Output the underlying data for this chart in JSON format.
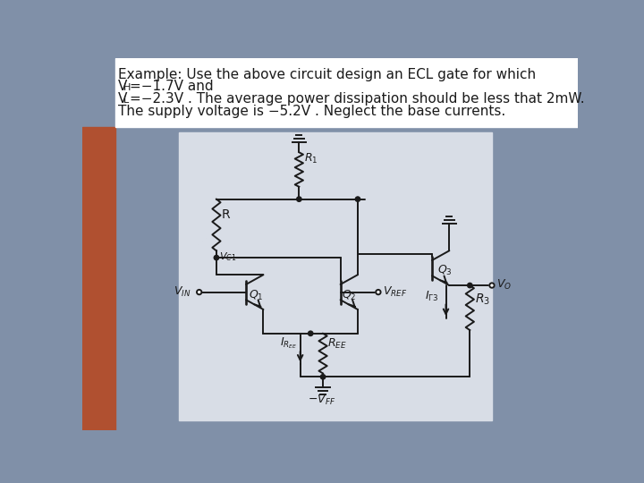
{
  "bg_color_left": "#b05030",
  "bg_color_right": "#8090a8",
  "text_bg": "#f0f0f0",
  "circuit_bg": "#d8dde6",
  "line_color": "#1a1a1a",
  "text_color": "#1a1a1a",
  "line1": "Example: Use the above circuit design an ECL gate for which",
  "line2_pre": "V",
  "line2_sub": "H",
  "line2_post": "=−1.7V and",
  "line3_pre": "V",
  "line3_sub": "L",
  "line3_post": "=−2.3V . The average power dissipation should be less that 2mW.",
  "line4": "The supply voltage is −5.2V . Neglect the base currents."
}
